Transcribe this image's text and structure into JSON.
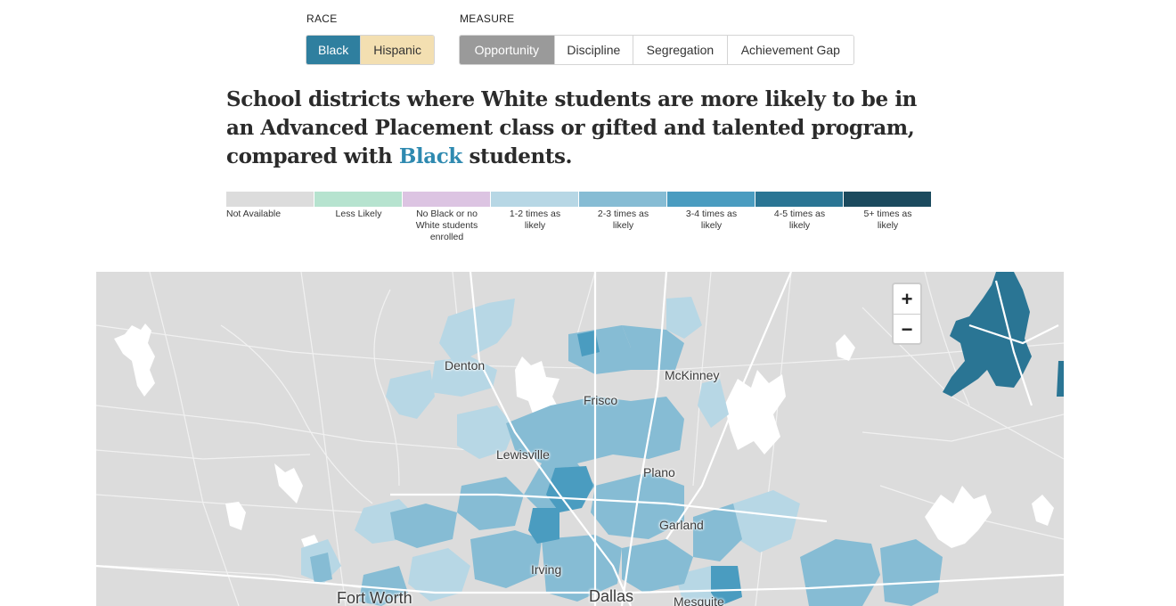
{
  "controls": {
    "race_label": "RACE",
    "race_options": [
      "Black",
      "Hispanic"
    ],
    "race_selected": "Black",
    "measure_label": "MEASURE",
    "measure_options": [
      "Opportunity",
      "Discipline",
      "Segregation",
      "Achievement Gap"
    ],
    "measure_selected": "Opportunity"
  },
  "headline": {
    "line_before": "School districts where White students are more likely to be in an Advanced Placement class or gifted and talented program, compared with ",
    "race": "Black",
    "line_after": " students."
  },
  "legend": [
    {
      "label": "Not Available",
      "color": "#dcdcdc"
    },
    {
      "label": "Less Likely",
      "color": "#b6e3cf"
    },
    {
      "label": "No Black or no White students enrolled",
      "color": "#dcc4e2"
    },
    {
      "label": "1-2 times as likely",
      "color": "#b7d7e5"
    },
    {
      "label": "2-3 times as likely",
      "color": "#86bcd4"
    },
    {
      "label": "3-4 times as likely",
      "color": "#4a9cc0"
    },
    {
      "label": "4-5 times as likely",
      "color": "#2a7594"
    },
    {
      "label": "5+ times as likely",
      "color": "#1b4a5e"
    }
  ],
  "map": {
    "cities": {
      "denton": "Denton",
      "mckinney": "McKinney",
      "frisco": "Frisco",
      "lewisville": "Lewisville",
      "plano": "Plano",
      "garland": "Garland",
      "irving": "Irving",
      "fort_worth": "Fort Worth",
      "dallas": "Dallas",
      "mesquite": "Mesquite"
    },
    "zoom_in": "+",
    "zoom_out": "−",
    "icons": {
      "zoom_in": "plus-icon",
      "zoom_out": "minus-icon"
    }
  }
}
